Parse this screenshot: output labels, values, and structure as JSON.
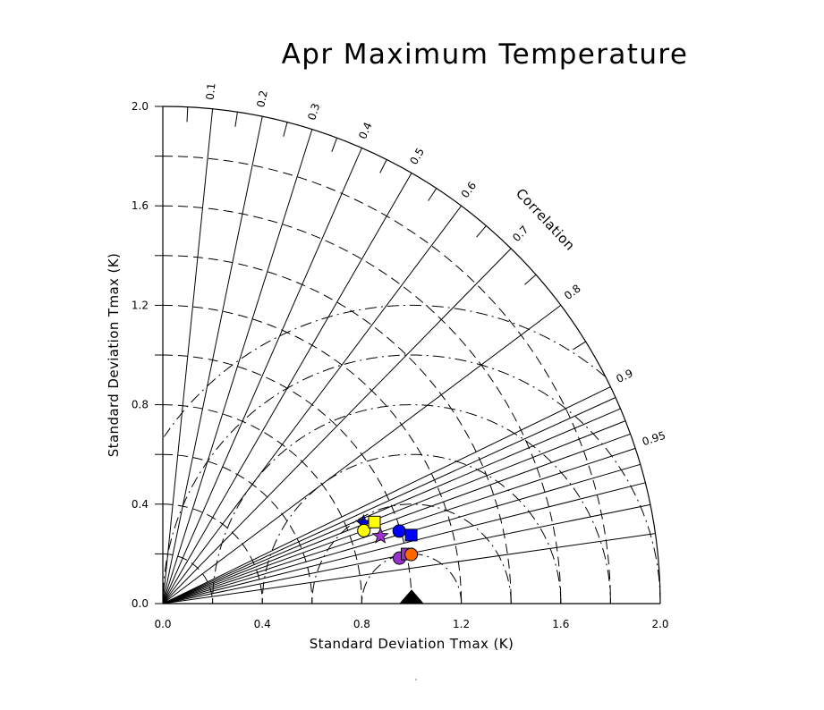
{
  "chart_data": {
    "type": "scatter",
    "subtype": "taylor-diagram",
    "title": "Apr Maximum Temperature",
    "xlabel": "Standard Deviation Tmax (K)",
    "ylabel": "Standard Deviation Tmax (K)",
    "corr_label": "Correlation",
    "xlim": [
      0,
      2.0
    ],
    "ylim": [
      0,
      2.0
    ],
    "x_ticks": [
      "0.0",
      "0.4",
      "0.8",
      "1.2",
      "1.6",
      "2.0"
    ],
    "x_tick_values": [
      0,
      0.4,
      0.8,
      1.2,
      1.6,
      2.0
    ],
    "y_ticks": [
      "0.0",
      "0.4",
      "0.8",
      "1.2",
      "1.6",
      "2.0"
    ],
    "y_tick_values": [
      0,
      0.4,
      0.8,
      1.2,
      1.6,
      2.0
    ],
    "corr_ticks": [
      "0.1",
      "0.2",
      "0.3",
      "0.4",
      "0.5",
      "0.6",
      "0.7",
      "0.8",
      "0.9",
      "0.95"
    ],
    "corr_tick_values": [
      0.1,
      0.2,
      0.3,
      0.4,
      0.5,
      0.6,
      0.7,
      0.8,
      0.9,
      0.95
    ],
    "corr_lines": [
      0.1,
      0.2,
      0.3,
      0.4,
      0.5,
      0.6,
      0.7,
      0.8,
      0.9,
      0.91,
      0.92,
      0.93,
      0.94,
      0.95,
      0.96,
      0.97,
      0.98,
      0.99
    ],
    "std_arcs": [
      0.2,
      0.4,
      0.6,
      0.8,
      1.0,
      1.2,
      1.4,
      1.6,
      1.8
    ],
    "rms_arcs": [
      0.2,
      0.4,
      0.6,
      0.8,
      1.0,
      1.2
    ],
    "reference": {
      "std": 1.0,
      "corr": 1.0,
      "marker": "triangle",
      "color": "#000000"
    },
    "points": [
      {
        "marker": "star",
        "color": "#0000cc",
        "std": 0.87,
        "corr": 0.928
      },
      {
        "marker": "circle",
        "color": "#ffff00",
        "std": 0.86,
        "corr": 0.94
      },
      {
        "marker": "square",
        "color": "#ffff00",
        "std": 0.912,
        "corr": 0.933
      },
      {
        "marker": "star",
        "color": "#9933cc",
        "std": 0.916,
        "corr": 0.955
      },
      {
        "marker": "circle",
        "color": "#0000ff",
        "std": 0.994,
        "corr": 0.956
      },
      {
        "marker": "square",
        "color": "#0000ff",
        "std": 1.036,
        "corr": 0.964
      },
      {
        "marker": "circle",
        "color": "#9933cc",
        "std": 0.969,
        "corr": 0.982
      },
      {
        "marker": "square",
        "color": "#9933cc",
        "std": 1.002,
        "corr": 0.98
      },
      {
        "marker": "circle",
        "color": "#ff6600",
        "std": 1.018,
        "corr": 0.981
      }
    ],
    "grid": true,
    "legend": "none"
  }
}
